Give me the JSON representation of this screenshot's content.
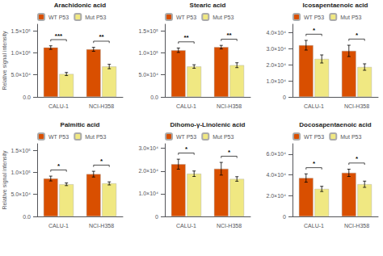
{
  "chart_data": [
    {
      "type": "bar",
      "title": "Arachidonic acid",
      "ylabel": "Relative signal intensity",
      "categories": [
        "CALU-1",
        "NCI-H358"
      ],
      "series": [
        {
          "name": "WT P53",
          "color": "#D94F00",
          "values": [
            112000,
            108000
          ],
          "errors": [
            4000,
            4500
          ]
        },
        {
          "name": "Mut P53",
          "color": "#F0E882",
          "values": [
            52000,
            69000
          ],
          "errors": [
            3500,
            5000
          ]
        }
      ],
      "annotations": [
        "***",
        "**"
      ],
      "ylim": [
        0,
        165000
      ],
      "yticks": [
        {
          "value": 0,
          "label": "0.0"
        },
        {
          "value": 50000,
          "label": "5.0×10⁴"
        },
        {
          "value": 100000,
          "label": "1.0×10⁵"
        },
        {
          "value": 150000,
          "label": "1.5×10⁵"
        }
      ],
      "legend": "upper left",
      "grid": false
    },
    {
      "type": "bar",
      "title": "Stearic acid",
      "categories": [
        "CALU-1",
        "NCI-H358"
      ],
      "series": [
        {
          "name": "WT P53",
          "color": "#D94F00",
          "values": [
            106000,
            113000
          ],
          "errors": [
            5000,
            4000
          ]
        },
        {
          "name": "Mut P53",
          "color": "#F0E882",
          "values": [
            69000,
            72000
          ],
          "errors": [
            4000,
            5500
          ]
        }
      ],
      "annotations": [
        "**",
        "**"
      ],
      "ylim": [
        0,
        165000
      ],
      "yticks": [
        {
          "value": 0,
          "label": "0.0"
        },
        {
          "value": 50000,
          "label": "5.0×10⁴"
        },
        {
          "value": 100000,
          "label": "1.0×10⁵"
        },
        {
          "value": 150000,
          "label": "1.5×10⁵"
        }
      ],
      "legend": "upper left",
      "grid": false
    },
    {
      "type": "bar",
      "title": "Icosapentaenoic acid",
      "categories": [
        "CALU-1",
        "NCI-H358"
      ],
      "series": [
        {
          "name": "WT P53",
          "color": "#D94F00",
          "values": [
            32000,
            28500
          ],
          "errors": [
            3000,
            3500
          ]
        },
        {
          "name": "Mut P53",
          "color": "#F0E882",
          "values": [
            23500,
            18500
          ],
          "errors": [
            2500,
            2000
          ]
        }
      ],
      "annotations": [
        "*",
        "*"
      ],
      "ylim": [
        0,
        45000
      ],
      "yticks": [
        0,
        {
          "value": 10000,
          "label": "1.0×10⁴"
        },
        {
          "value": 20000,
          "label": "2.0×10⁴"
        },
        {
          "value": 30000,
          "label": "3.0×10⁴"
        },
        {
          "value": 40000,
          "label": "4.0×10⁴"
        }
      ],
      "legend": "upper left",
      "grid": false
    },
    {
      "type": "bar",
      "title": "Palmitic acid",
      "ylabel": "Relative signal intensity",
      "categories": [
        "CALU-1",
        "NCI-H358"
      ],
      "series": [
        {
          "name": "WT P53",
          "color": "#D94F00",
          "values": [
            86000,
            96000
          ],
          "errors": [
            5500,
            6500
          ]
        },
        {
          "name": "Mut P53",
          "color": "#F0E882",
          "values": [
            73000,
            75000
          ],
          "errors": [
            3000,
            3500
          ]
        }
      ],
      "annotations": [
        "*",
        "*"
      ],
      "ylim": [
        0,
        165000
      ],
      "yticks": [
        {
          "value": 0,
          "label": "0.0"
        },
        {
          "value": 50000,
          "label": "5.0×10⁴"
        },
        {
          "value": 100000,
          "label": "1.0×10⁵"
        },
        {
          "value": 150000,
          "label": "1.5×10⁵"
        }
      ],
      "legend": "upper left",
      "grid": false
    },
    {
      "type": "bar",
      "title": "Dihomo-γ-Linolenic acid",
      "categories": [
        "CALU-1",
        "NCI-H358"
      ],
      "series": [
        {
          "name": "WT P53",
          "color": "#D94F00",
          "values": [
            23000,
            21000
          ],
          "errors": [
            2200,
            2800
          ]
        },
        {
          "name": "Mut P53",
          "color": "#F0E882",
          "values": [
            18800,
            16500
          ],
          "errors": [
            1200,
            1000
          ]
        }
      ],
      "annotations": [
        "*",
        "*"
      ],
      "ylim": [
        0,
        32000
      ],
      "yticks": [
        0,
        {
          "value": 10000,
          "label": "1.0×10⁴"
        },
        {
          "value": 20000,
          "label": "2.0×10⁴"
        },
        {
          "value": 30000,
          "label": "3.0×10⁴"
        }
      ],
      "legend": "upper left",
      "grid": false
    },
    {
      "type": "bar",
      "title": "Docosapentaenoic acid",
      "categories": [
        "CALU-1",
        "NCI-H358"
      ],
      "series": [
        {
          "name": "WT P53",
          "color": "#D94F00",
          "values": [
            37000,
            42000
          ],
          "errors": [
            4000,
            3500
          ]
        },
        {
          "name": "Mut P53",
          "color": "#F0E882",
          "values": [
            26500,
            31000
          ],
          "errors": [
            2500,
            3000
          ]
        }
      ],
      "annotations": [
        "*",
        "*"
      ],
      "ylim": [
        0,
        70000
      ],
      "yticks": [
        0,
        {
          "value": 20000,
          "label": "2.0×10⁴"
        },
        {
          "value": 40000,
          "label": "4.0×10⁴"
        },
        {
          "value": 60000,
          "label": "6.0×10⁴"
        }
      ],
      "legend": "upper left",
      "grid": false
    }
  ]
}
